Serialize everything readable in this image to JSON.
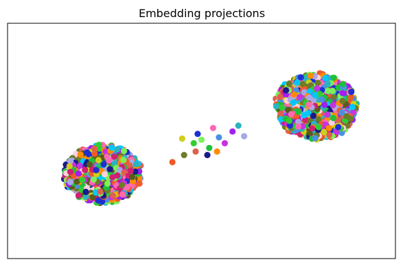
{
  "chart_data": {
    "type": "scatter",
    "title": "Embedding projections",
    "xlabel": "",
    "ylabel": "",
    "xlim": [
      -10,
      10
    ],
    "ylim": [
      -10,
      10
    ],
    "axis_ticks": false,
    "grid": false,
    "legend": null,
    "palette": [
      "#f05a28",
      "#e0604f",
      "#6b7c2a",
      "#7df05a",
      "#1fbf3a",
      "#4a90e2",
      "#1f2fd0",
      "#c832e0",
      "#ff69b4",
      "#a020f0",
      "#1a1a8a",
      "#cfcf1a",
      "#2ab4c0",
      "#a7a9e6",
      "#ff8c00",
      "#32cd32",
      "#ffd1dc",
      "#5b5b1a",
      "#d02070",
      "#00c8ff"
    ],
    "clusters": [
      {
        "center": [
          -5.1,
          -2.8
        ],
        "spread": [
          2.05,
          2.55
        ],
        "count": 1500
      },
      {
        "center": [
          5.9,
          2.9
        ],
        "spread": [
          2.2,
          2.9
        ],
        "count": 1500
      }
    ],
    "bridge_points": [
      {
        "x": -1.5,
        "y": -1.8
      },
      {
        "x": -0.3,
        "y": -0.9
      },
      {
        "x": -0.9,
        "y": -1.2
      },
      {
        "x": 0.0,
        "y": 0.1
      },
      {
        "x": 0.4,
        "y": -0.6
      },
      {
        "x": 0.9,
        "y": 0.3
      },
      {
        "x": -0.2,
        "y": 0.6
      },
      {
        "x": 1.2,
        "y": -0.2
      },
      {
        "x": 0.6,
        "y": 1.1
      },
      {
        "x": 1.6,
        "y": 0.8
      },
      {
        "x": 0.3,
        "y": -1.2
      },
      {
        "x": -1.0,
        "y": 0.2
      },
      {
        "x": 1.9,
        "y": 1.3
      },
      {
        "x": 2.2,
        "y": 0.4
      },
      {
        "x": 0.8,
        "y": -0.9
      },
      {
        "x": -0.4,
        "y": -0.2
      }
    ]
  }
}
